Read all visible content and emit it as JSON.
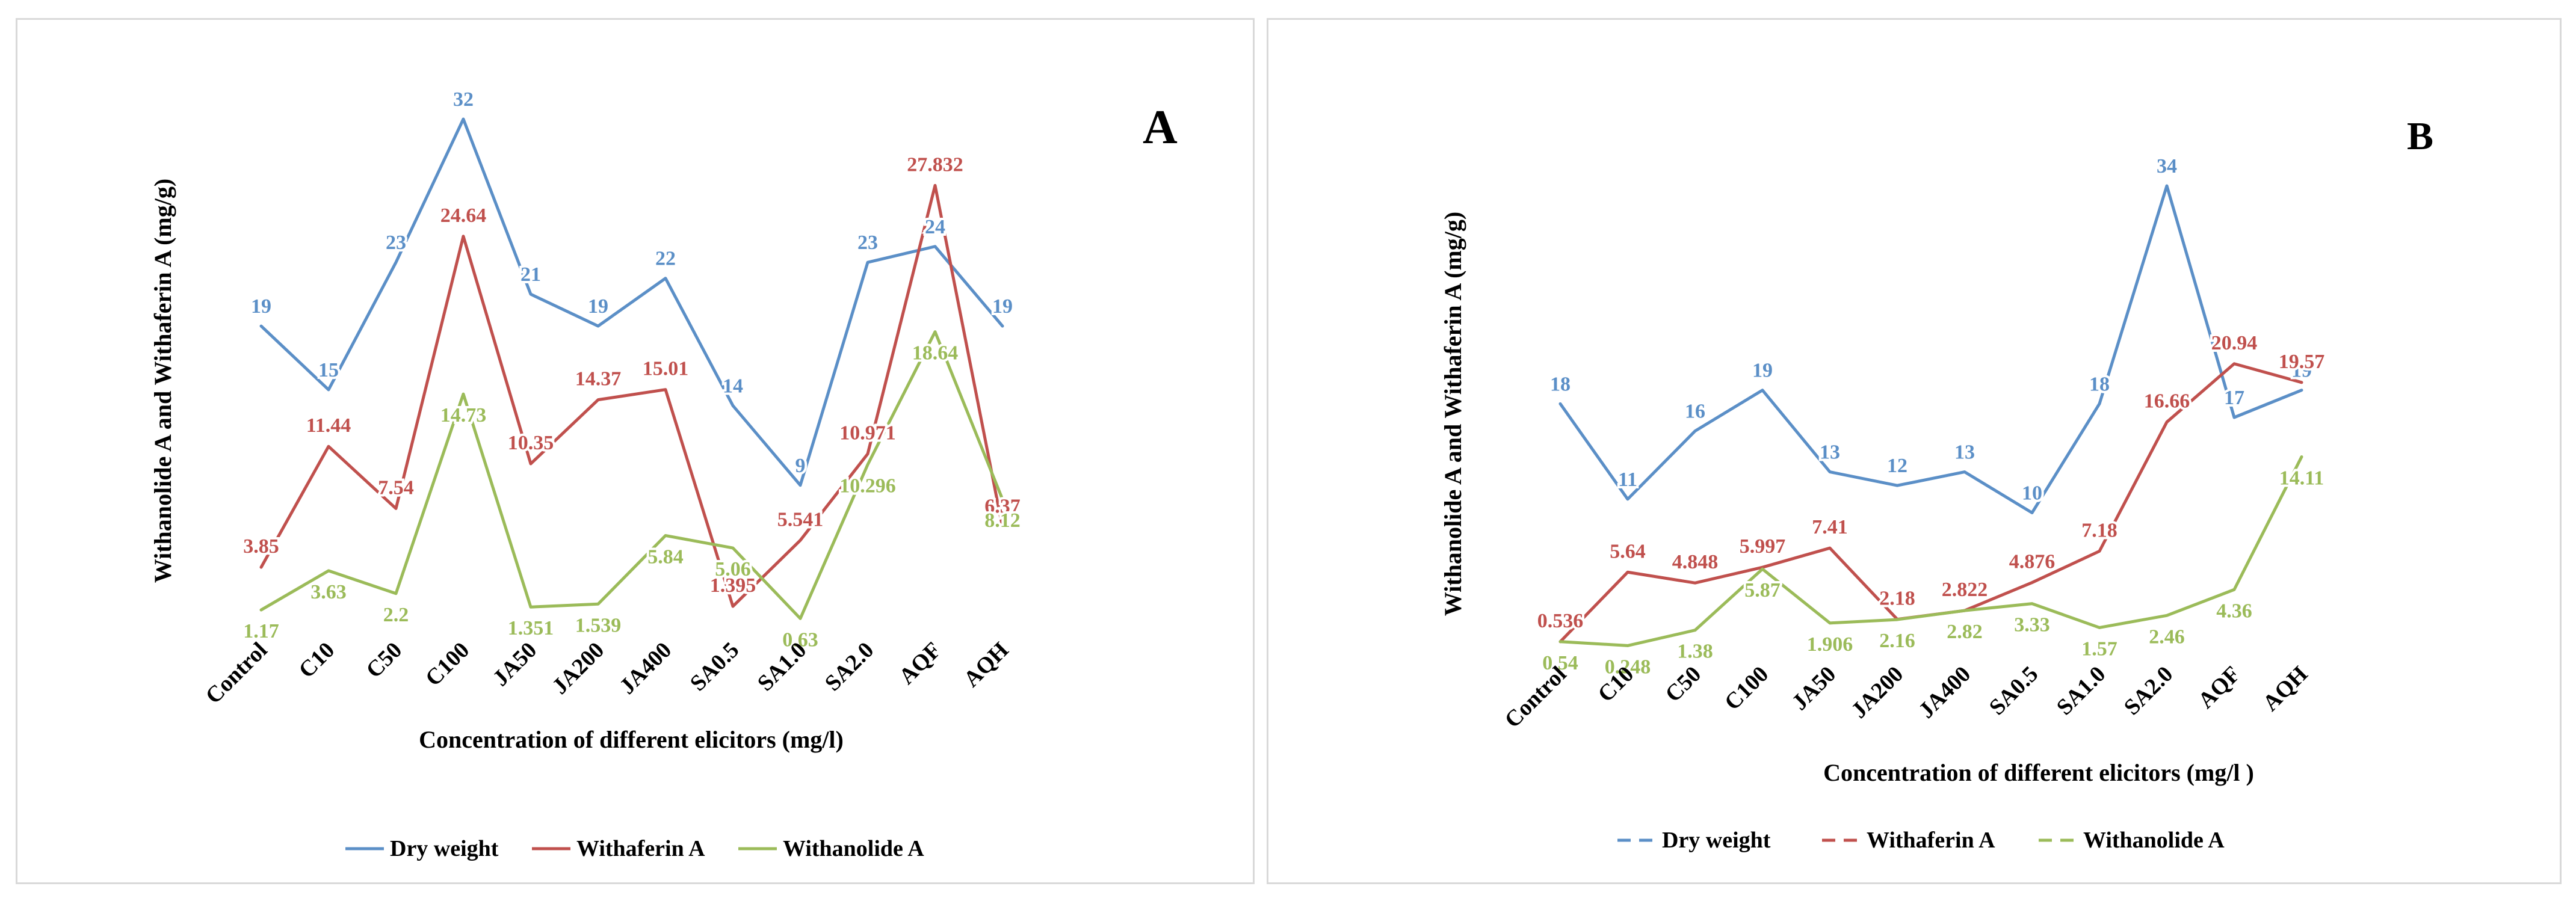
{
  "chart_data": [
    {
      "type": "line",
      "panel_label": "A",
      "title": "",
      "xlabel": "Concentration of different elicitors (mg/l)",
      "ylabel": "Withanolide A and Withaferin A (mg/g)",
      "ylim": [
        0,
        32
      ],
      "categories": [
        "Control",
        "C10",
        "C50",
        "C100",
        "JA50",
        "JA200",
        "JA400",
        "SA0.5",
        "SA1.0",
        "SA2.0",
        "AQF",
        "AQH"
      ],
      "series": [
        {
          "name": "Dry weight",
          "color": "#5b8fc7",
          "values": [
            19,
            15,
            23,
            32,
            21,
            19,
            22,
            14,
            9,
            23,
            24,
            19
          ],
          "labels": [
            "19",
            "15",
            "23",
            "32",
            "21",
            "19",
            "22",
            "14",
            "9",
            "23",
            "24",
            "19"
          ]
        },
        {
          "name": "Withaferin A",
          "color": "#c0504d",
          "values": [
            3.85,
            11.44,
            7.54,
            24.64,
            10.35,
            14.37,
            15.01,
            1.395,
            5.541,
            10.971,
            27.832,
            6.37
          ],
          "labels": [
            "3.85",
            "11.44",
            "7.54",
            "24.64",
            "10.35",
            "14.37",
            "15.01",
            "1.395",
            "5.541",
            "10.971",
            "27.832",
            "6.37"
          ]
        },
        {
          "name": "Withanolide A",
          "color": "#9bbb59",
          "values": [
            1.17,
            3.63,
            2.2,
            14.73,
            1.351,
            1.539,
            5.84,
            5.06,
            0.63,
            10.296,
            18.64,
            8.12
          ],
          "labels": [
            "1.17",
            "3.63",
            "2.2",
            "14.73",
            "1.351",
            "1.539",
            "5.84",
            "5.06",
            "0.63",
            "10.296",
            "18.64",
            "8.12"
          ]
        }
      ],
      "legend": [
        "Dry weight",
        "Withaferin A",
        "Withanolide A"
      ],
      "legend_position": "bottom"
    },
    {
      "type": "line",
      "panel_label": "B",
      "title": "",
      "xlabel": "Concentration of different elicitors (mg/l )",
      "ylabel": "Withanolide A and Withaferin A (mg/g)",
      "ylim": [
        0,
        34
      ],
      "categories": [
        "Control",
        "C10",
        "C50",
        "C100",
        "JA50",
        "JA200",
        "JA400",
        "SA0.5",
        "SA1.0",
        "SA2.0",
        "AQF",
        "AQH"
      ],
      "series": [
        {
          "name": "Dry weight",
          "color": "#5b8fc7",
          "values": [
            18,
            11,
            16,
            19,
            13,
            12,
            13,
            10,
            18,
            34,
            17,
            19
          ],
          "labels": [
            "18",
            "11",
            "16",
            "19",
            "13",
            "12",
            "13",
            "10",
            "18",
            "34",
            "17",
            "19"
          ]
        },
        {
          "name": "Withaferin A",
          "color": "#c0504d",
          "values": [
            0.536,
            5.64,
            4.848,
            5.997,
            7.41,
            2.18,
            2.822,
            4.876,
            7.18,
            16.66,
            20.94,
            19.57
          ],
          "labels": [
            "0.536",
            "5.64",
            "4.848",
            "5.997",
            "7.41",
            "2.18",
            "2.822",
            "4.876",
            "7.18",
            "16.66",
            "20.94",
            "19.57"
          ]
        },
        {
          "name": "Withanolide A",
          "color": "#9bbb59",
          "values": [
            0.54,
            0.248,
            1.38,
            5.87,
            1.906,
            2.16,
            2.82,
            3.33,
            1.57,
            2.46,
            4.36,
            14.11
          ],
          "labels": [
            "0.54",
            "0.248",
            "1.38",
            "5.87",
            "1.906",
            "2.16",
            "2.82",
            "3.33",
            "1.57",
            "2.46",
            "4.36",
            "14.11"
          ]
        }
      ],
      "legend": [
        "Dry weight",
        "Withaferin A",
        "Withanolide A"
      ],
      "legend_position": "bottom"
    }
  ]
}
